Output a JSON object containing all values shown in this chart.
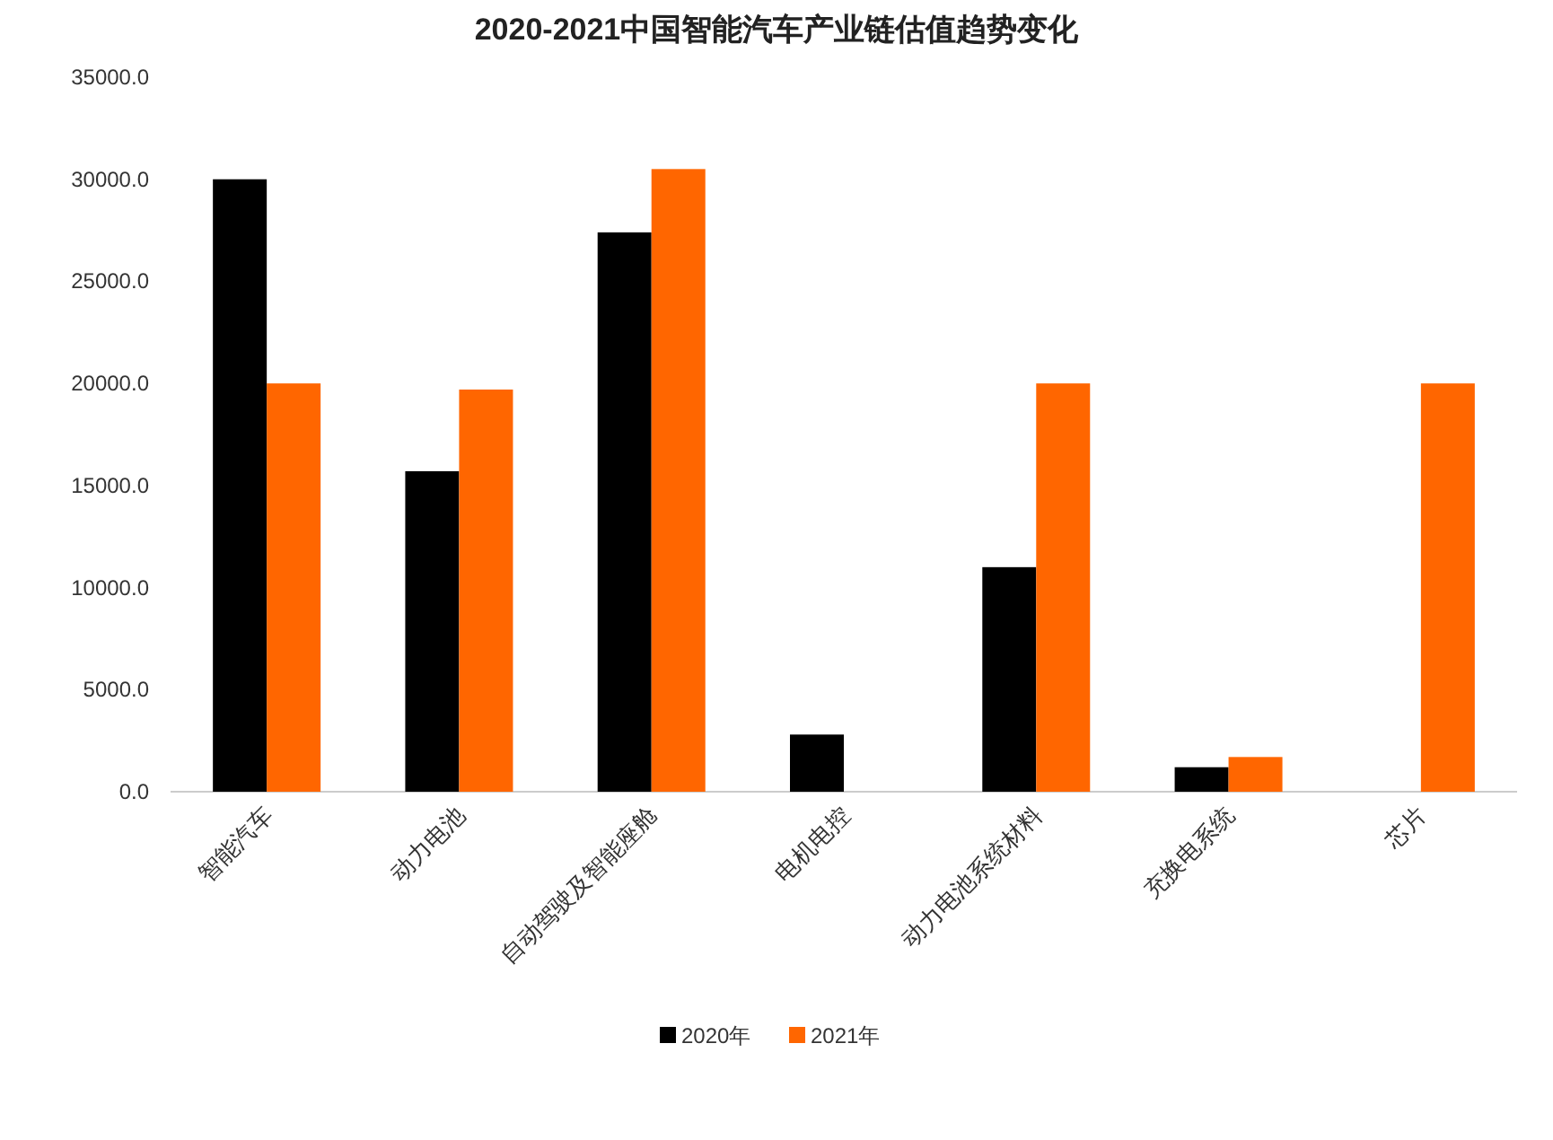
{
  "chart_data": {
    "type": "bar",
    "title": "2020-2021中国智能汽车产业链估值趋势变化",
    "categories": [
      "智能汽车",
      "动力电池",
      "自动驾驶及智能座舱",
      "电机电控",
      "动力电池系统材料",
      "充换电系统",
      "芯片"
    ],
    "series": [
      {
        "name": "2020年",
        "color": "#000000",
        "values": [
          30000,
          15700,
          27400,
          2800,
          11000,
          1200,
          null
        ]
      },
      {
        "name": "2021年",
        "color": "#ff6600",
        "values": [
          20000,
          19700,
          30500,
          null,
          20000,
          1700,
          20000
        ]
      }
    ],
    "ylim": [
      0,
      35000
    ],
    "yticks": [
      {
        "value": 0,
        "label": "0.0"
      },
      {
        "value": 5000,
        "label": "5000.0"
      },
      {
        "value": 10000,
        "label": "10000.0"
      },
      {
        "value": 15000,
        "label": "15000.0"
      },
      {
        "value": 20000,
        "label": "20000.0"
      },
      {
        "value": 25000,
        "label": "25000.0"
      },
      {
        "value": 30000,
        "label": "30000.0"
      },
      {
        "value": 35000,
        "label": "35000.0"
      }
    ],
    "legend": "bottom",
    "grid": false
  }
}
